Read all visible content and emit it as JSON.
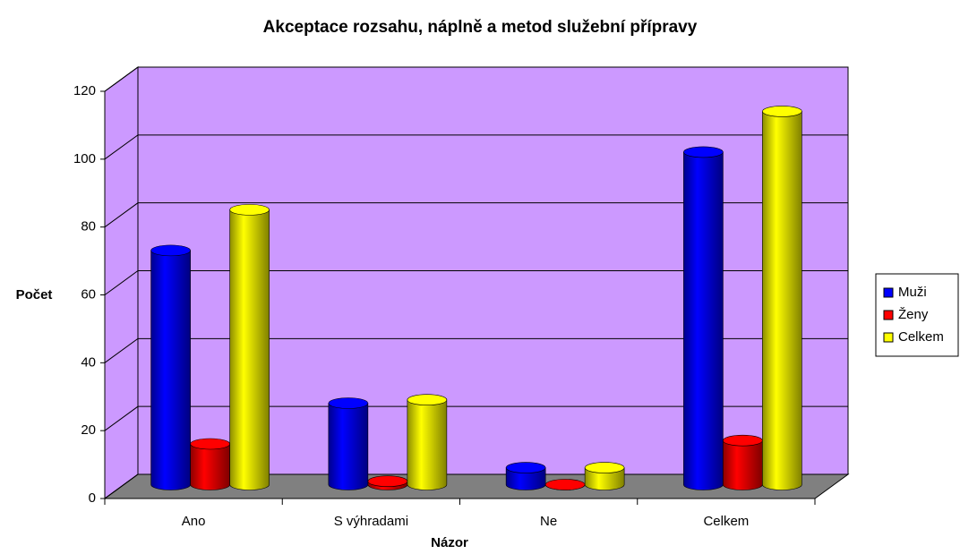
{
  "chart_data": {
    "type": "bar3d",
    "title": "Akceptace rozsahu, náplně a metod služební přípravy",
    "x_label": "Názor",
    "y_label": "Počet",
    "categories": [
      "Ano",
      "S výhradami",
      "Ne",
      "Celkem"
    ],
    "series": [
      {
        "name": "Muži",
        "color": "#0000ff",
        "values": [
          69,
          24,
          5,
          98
        ]
      },
      {
        "name": "Ženy",
        "color": "#ff0000",
        "values": [
          12,
          1,
          0,
          13
        ]
      },
      {
        "name": "Celkem",
        "color": "#ffff00",
        "values": [
          81,
          25,
          5,
          110
        ]
      }
    ],
    "ylim": [
      0,
      120
    ],
    "yticks": [
      0,
      20,
      40,
      60,
      80,
      100,
      120
    ],
    "grid": true,
    "legend": "right"
  }
}
